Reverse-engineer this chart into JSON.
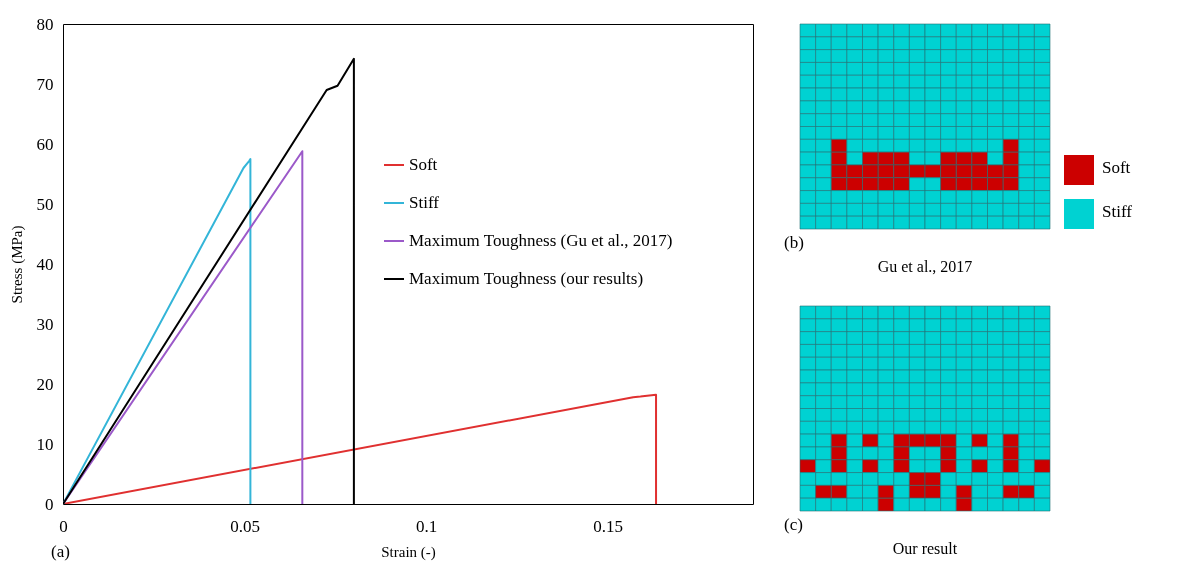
{
  "chart_data": [
    {
      "type": "line",
      "xlabel": "Strain (-)",
      "ylabel": "Stress (MPa)",
      "xlim": [
        0,
        0.19
      ],
      "xticks": [
        0,
        0.05,
        0.1,
        0.15
      ],
      "ylim": [
        0,
        80
      ],
      "yticks": [
        0,
        10,
        20,
        30,
        40,
        50,
        60,
        70,
        80
      ],
      "grid": false,
      "legend": "top right",
      "annotations": [
        "(a)"
      ],
      "series": [
        {
          "name": "Soft",
          "color": "#e03030",
          "x": [
            0,
            0.157,
            0.159,
            0.1633,
            0.1633
          ],
          "values": [
            0,
            17.8,
            17.9,
            18.2,
            0
          ]
        },
        {
          "name": "Stiff",
          "color": "#33b5d8",
          "x": [
            0,
            0.0497,
            0.0505,
            0.0513,
            0.0516,
            0.0516
          ],
          "values": [
            0,
            56,
            56.6,
            57.2,
            57.5,
            0
          ]
        },
        {
          "name": "Maximum Toughness (Gu et al., 2017)",
          "color": "#9b59c9",
          "x": [
            0,
            0.0659,
            0.0659
          ],
          "values": [
            0,
            58.8,
            0
          ]
        },
        {
          "name": "Maximum Toughness (our results)",
          "color": "#000000",
          "x": [
            0,
            0.0726,
            0.0756,
            0.0801,
            0.0801
          ],
          "values": [
            0,
            69,
            69.7,
            74.2,
            0
          ]
        }
      ]
    },
    {
      "type": "other",
      "title": "Gu et al., 2017",
      "annotations": [
        "(b)",
        "Soft",
        "Stiff"
      ]
    },
    {
      "type": "other",
      "title": "Our result",
      "annotations": [
        "(c)"
      ]
    }
  ]
}
